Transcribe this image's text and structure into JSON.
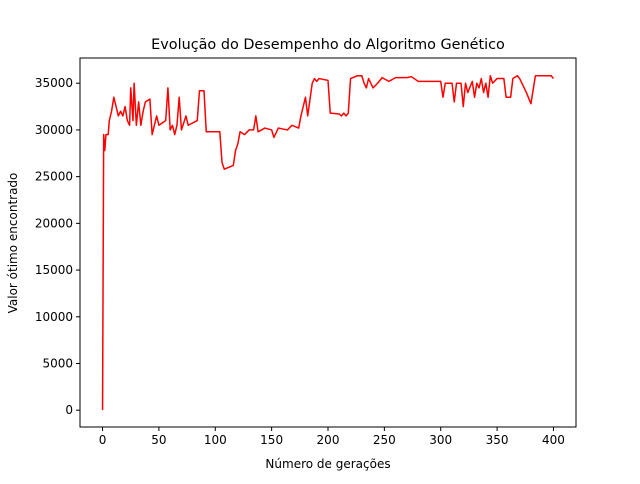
{
  "chart_data": {
    "type": "line",
    "title": "Evolução do Desempenho do Algoritmo Genético",
    "x_label": "Número de gerações",
    "y_label": "Valor ótimo encontrado",
    "color": "#ff0000",
    "x": [
      0,
      1,
      2,
      3,
      5,
      6,
      8,
      10,
      12,
      14,
      16,
      18,
      20,
      22,
      24,
      25,
      27,
      28,
      30,
      32,
      34,
      36,
      38,
      42,
      44,
      46,
      48,
      50,
      56,
      58,
      60,
      62,
      64,
      66,
      68,
      70,
      74,
      76,
      84,
      86,
      90,
      92,
      104,
      106,
      108,
      112,
      116,
      118,
      120,
      122,
      126,
      130,
      134,
      136,
      138,
      144,
      150,
      152,
      156,
      164,
      168,
      174,
      176,
      180,
      182,
      186,
      188,
      190,
      192,
      200,
      202,
      210,
      212,
      214,
      216,
      218,
      220,
      226,
      230,
      232,
      234,
      236,
      240,
      244,
      248,
      254,
      260,
      270,
      274,
      280,
      300,
      302,
      304,
      310,
      312,
      314,
      318,
      320,
      322,
      324,
      328,
      330,
      332,
      334,
      336,
      338,
      340,
      342,
      344,
      346,
      350,
      356,
      358,
      362,
      364,
      368,
      370,
      376,
      380,
      384,
      390,
      398,
      400
    ],
    "values": [
      0,
      29500,
      27800,
      29500,
      29500,
      31000,
      32000,
      33500,
      32500,
      31500,
      32000,
      31500,
      32500,
      31000,
      30500,
      34500,
      31000,
      35000,
      30500,
      33000,
      30500,
      32000,
      33000,
      33300,
      29500,
      30500,
      31500,
      30500,
      31000,
      34500,
      30000,
      30500,
      29500,
      30500,
      33500,
      30000,
      31500,
      30500,
      31000,
      34200,
      34200,
      29800,
      29800,
      26500,
      25800,
      26000,
      26200,
      27800,
      28500,
      29800,
      29500,
      30000,
      30000,
      31500,
      29800,
      30200,
      30000,
      29200,
      30200,
      30000,
      30500,
      30200,
      31500,
      33500,
      31500,
      35000,
      35500,
      35200,
      35500,
      35300,
      31800,
      31700,
      31500,
      31800,
      31500,
      31800,
      35500,
      35800,
      35800,
      35000,
      34500,
      35500,
      34500,
      35000,
      35600,
      35200,
      35600,
      35600,
      35700,
      35200,
      35200,
      33500,
      35000,
      35000,
      33000,
      35000,
      35000,
      32500,
      35000,
      34000,
      35200,
      33500,
      35000,
      34500,
      35500,
      34000,
      35000,
      33500,
      35800,
      35000,
      35500,
      35500,
      33500,
      33500,
      35500,
      35800,
      35500,
      34000,
      32800,
      35800,
      35800,
      35800,
      35500
    ],
    "xlim": [
      -20,
      420
    ],
    "ylim": [
      -1800,
      37700
    ],
    "xticks": [
      0,
      50,
      100,
      150,
      200,
      250,
      300,
      350,
      400
    ],
    "yticks": [
      0,
      5000,
      10000,
      15000,
      20000,
      25000,
      30000,
      35000
    ]
  }
}
